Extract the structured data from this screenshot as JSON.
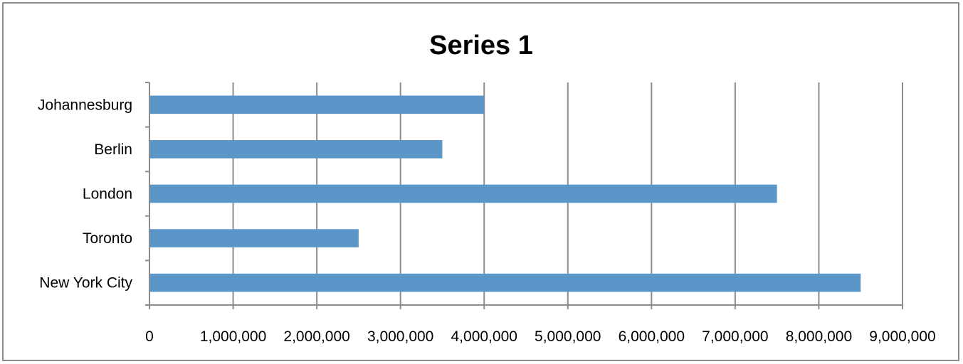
{
  "chart_data": {
    "type": "bar",
    "orientation": "horizontal",
    "title": "Series 1",
    "categories": [
      "New York City",
      "Toronto",
      "London",
      "Berlin",
      "Johannesburg"
    ],
    "series": [
      {
        "values": [
          8500000,
          2500000,
          7500000,
          3500000,
          4000000
        ]
      }
    ],
    "xlim": [
      0,
      9000000
    ],
    "x_ticks": [
      0,
      1000000,
      2000000,
      3000000,
      4000000,
      5000000,
      6000000,
      7000000,
      8000000,
      9000000
    ],
    "x_tick_labels": [
      "0",
      "1,000,000",
      "2,000,000",
      "3,000,000",
      "4,000,000",
      "5,000,000",
      "6,000,000",
      "7,000,000",
      "8,000,000",
      "9,000,000"
    ],
    "grid": "vertical",
    "legend": "none",
    "colors": {
      "bar": "#5b96c8",
      "grid": "#8c8c8c",
      "axis": "#8c8c8c",
      "border": "#8c8c8c"
    }
  }
}
